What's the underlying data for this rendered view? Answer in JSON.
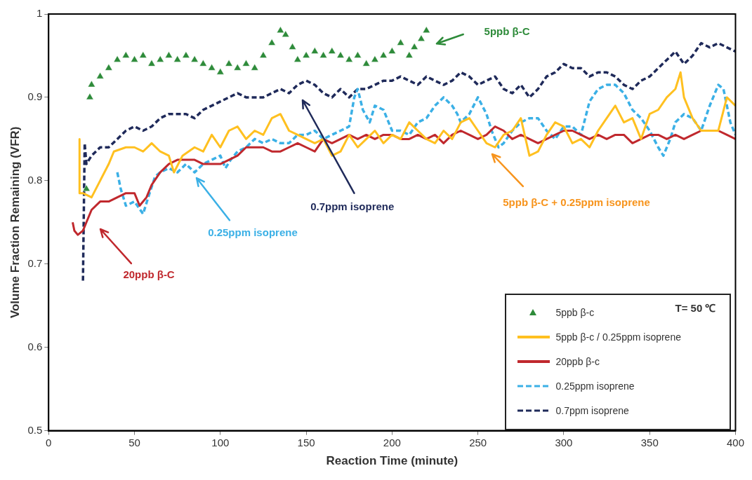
{
  "chart_data": {
    "type": "line",
    "xlabel": "Reaction Time (minute)",
    "ylabel": "Volume Fraction Remaining (VFR)",
    "xlim": [
      0,
      400
    ],
    "xticks": [
      0,
      50,
      100,
      150,
      200,
      250,
      300,
      350,
      400
    ],
    "ylim": [
      0.5,
      1
    ],
    "yticks": [
      0.5,
      0.6,
      0.7,
      0.8,
      0.9,
      1
    ],
    "grid": false,
    "legend": "bottom right",
    "marker": "none",
    "series": [
      {
        "name": "5ppb β-c",
        "type": "scatter",
        "marker": "triangle",
        "color": "#2e8b3a",
        "x": [
          22,
          24,
          25,
          30,
          35,
          40,
          45,
          50,
          55,
          60,
          65,
          70,
          75,
          80,
          85,
          90,
          95,
          100,
          105,
          110,
          115,
          120,
          125,
          130,
          135,
          138,
          142,
          145,
          150,
          155,
          160,
          165,
          170,
          175,
          180,
          185,
          190,
          195,
          200,
          205,
          210,
          213,
          217,
          220
        ],
        "values": [
          0.79,
          0.9,
          0.915,
          0.925,
          0.935,
          0.945,
          0.95,
          0.945,
          0.95,
          0.94,
          0.945,
          0.95,
          0.945,
          0.95,
          0.945,
          0.94,
          0.935,
          0.93,
          0.94,
          0.935,
          0.94,
          0.935,
          0.95,
          0.965,
          0.98,
          0.975,
          0.96,
          0.945,
          0.95,
          0.955,
          0.95,
          0.955,
          0.95,
          0.945,
          0.95,
          0.94,
          0.945,
          0.95,
          0.955,
          0.965,
          0.95,
          0.96,
          0.97,
          0.98
        ]
      },
      {
        "name": "5ppb β-c / 0.25ppm isoprene",
        "color": "#ffc020",
        "line_style": "solid",
        "x": [
          18,
          18,
          20,
          25,
          30,
          35,
          38,
          45,
          50,
          55,
          60,
          65,
          70,
          73,
          78,
          85,
          90,
          95,
          100,
          105,
          110,
          115,
          120,
          125,
          130,
          135,
          140,
          145,
          150,
          155,
          160,
          165,
          170,
          175,
          180,
          185,
          190,
          195,
          200,
          205,
          210,
          215,
          220,
          225,
          230,
          235,
          240,
          245,
          250,
          255,
          260,
          265,
          270,
          275,
          280,
          285,
          290,
          295,
          300,
          305,
          310,
          315,
          320,
          325,
          330,
          335,
          340,
          345,
          350,
          355,
          360,
          365,
          368,
          370,
          375,
          380,
          385,
          390,
          395,
          400
        ],
        "values": [
          0.85,
          0.785,
          0.785,
          0.78,
          0.8,
          0.82,
          0.835,
          0.84,
          0.84,
          0.835,
          0.845,
          0.835,
          0.83,
          0.81,
          0.83,
          0.84,
          0.835,
          0.855,
          0.84,
          0.86,
          0.865,
          0.85,
          0.86,
          0.855,
          0.875,
          0.88,
          0.86,
          0.855,
          0.85,
          0.845,
          0.85,
          0.83,
          0.835,
          0.855,
          0.84,
          0.85,
          0.86,
          0.845,
          0.855,
          0.85,
          0.87,
          0.86,
          0.85,
          0.845,
          0.86,
          0.85,
          0.87,
          0.875,
          0.86,
          0.845,
          0.84,
          0.855,
          0.86,
          0.875,
          0.83,
          0.835,
          0.855,
          0.87,
          0.865,
          0.845,
          0.85,
          0.84,
          0.86,
          0.875,
          0.89,
          0.87,
          0.875,
          0.85,
          0.88,
          0.885,
          0.9,
          0.91,
          0.93,
          0.9,
          0.875,
          0.86,
          0.86,
          0.86,
          0.9,
          0.89
        ]
      },
      {
        "name": "20ppb β-c",
        "color": "#c0282d",
        "line_style": "solid",
        "x": [
          14,
          15,
          17,
          20,
          22,
          25,
          30,
          35,
          40,
          45,
          50,
          53,
          57,
          60,
          65,
          70,
          75,
          80,
          85,
          90,
          95,
          100,
          105,
          110,
          115,
          120,
          125,
          130,
          135,
          140,
          145,
          150,
          155,
          160,
          165,
          170,
          175,
          180,
          185,
          190,
          195,
          200,
          205,
          210,
          215,
          220,
          225,
          230,
          235,
          240,
          245,
          250,
          255,
          260,
          265,
          270,
          275,
          280,
          285,
          290,
          295,
          300,
          305,
          310,
          315,
          320,
          325,
          330,
          335,
          340,
          345,
          350,
          355,
          360,
          365,
          370,
          375,
          380,
          385,
          390,
          395,
          400
        ],
        "values": [
          0.75,
          0.74,
          0.735,
          0.74,
          0.75,
          0.765,
          0.775,
          0.775,
          0.78,
          0.785,
          0.785,
          0.77,
          0.78,
          0.795,
          0.81,
          0.82,
          0.825,
          0.825,
          0.825,
          0.82,
          0.82,
          0.82,
          0.825,
          0.83,
          0.84,
          0.84,
          0.84,
          0.835,
          0.835,
          0.84,
          0.845,
          0.84,
          0.835,
          0.85,
          0.845,
          0.85,
          0.855,
          0.85,
          0.855,
          0.85,
          0.855,
          0.855,
          0.85,
          0.85,
          0.855,
          0.85,
          0.855,
          0.845,
          0.855,
          0.86,
          0.855,
          0.85,
          0.855,
          0.865,
          0.86,
          0.85,
          0.855,
          0.85,
          0.845,
          0.85,
          0.855,
          0.86,
          0.86,
          0.855,
          0.85,
          0.855,
          0.85,
          0.855,
          0.855,
          0.845,
          0.85,
          0.855,
          0.855,
          0.85,
          0.855,
          0.85,
          0.855,
          0.86,
          0.86,
          0.86,
          0.855,
          0.85
        ]
      },
      {
        "name": "0.25ppm isoprene",
        "color": "#3bb0e6",
        "line_style": "dashed",
        "x": [
          40,
          42,
          45,
          50,
          55,
          58,
          62,
          65,
          70,
          75,
          80,
          85,
          90,
          95,
          100,
          103,
          106,
          110,
          115,
          120,
          125,
          130,
          135,
          140,
          145,
          150,
          155,
          160,
          165,
          170,
          175,
          178,
          180,
          183,
          187,
          190,
          195,
          200,
          205,
          210,
          215,
          220,
          225,
          230,
          235,
          238,
          240,
          245,
          250,
          255,
          258,
          262,
          265,
          270,
          275,
          280,
          285,
          290,
          295,
          300,
          305,
          310,
          315,
          320,
          325,
          330,
          335,
          340,
          345,
          350,
          355,
          358,
          362,
          365,
          370,
          375,
          380,
          385,
          390,
          393,
          397,
          400
        ],
        "values": [
          0.81,
          0.79,
          0.77,
          0.775,
          0.76,
          0.78,
          0.805,
          0.81,
          0.815,
          0.81,
          0.82,
          0.81,
          0.82,
          0.825,
          0.83,
          0.815,
          0.825,
          0.835,
          0.84,
          0.85,
          0.845,
          0.85,
          0.845,
          0.845,
          0.855,
          0.855,
          0.86,
          0.85,
          0.855,
          0.86,
          0.865,
          0.9,
          0.91,
          0.885,
          0.87,
          0.89,
          0.885,
          0.86,
          0.86,
          0.855,
          0.87,
          0.875,
          0.89,
          0.9,
          0.89,
          0.88,
          0.87,
          0.88,
          0.9,
          0.88,
          0.86,
          0.84,
          0.845,
          0.86,
          0.87,
          0.875,
          0.875,
          0.86,
          0.85,
          0.865,
          0.865,
          0.855,
          0.895,
          0.91,
          0.915,
          0.915,
          0.905,
          0.885,
          0.875,
          0.86,
          0.84,
          0.83,
          0.85,
          0.87,
          0.88,
          0.875,
          0.86,
          0.89,
          0.915,
          0.91,
          0.87,
          0.855
        ]
      },
      {
        "name": "0.7ppm isoprene",
        "color": "#1f2a5a",
        "line_style": "dashed",
        "x": [
          20,
          21,
          22,
          25,
          30,
          35,
          40,
          45,
          50,
          55,
          60,
          65,
          70,
          75,
          80,
          85,
          90,
          95,
          100,
          105,
          110,
          115,
          120,
          125,
          130,
          135,
          140,
          145,
          150,
          155,
          160,
          165,
          170,
          175,
          180,
          185,
          190,
          195,
          200,
          205,
          210,
          215,
          220,
          225,
          230,
          235,
          240,
          245,
          250,
          255,
          260,
          265,
          270,
          275,
          280,
          285,
          290,
          295,
          300,
          305,
          310,
          315,
          320,
          325,
          330,
          335,
          340,
          345,
          350,
          355,
          360,
          365,
          370,
          375,
          380,
          385,
          390,
          395,
          400
        ],
        "values": [
          0.68,
          0.845,
          0.82,
          0.83,
          0.84,
          0.84,
          0.85,
          0.86,
          0.865,
          0.86,
          0.865,
          0.875,
          0.88,
          0.88,
          0.88,
          0.875,
          0.885,
          0.89,
          0.895,
          0.9,
          0.905,
          0.9,
          0.9,
          0.9,
          0.905,
          0.91,
          0.905,
          0.915,
          0.92,
          0.915,
          0.905,
          0.9,
          0.91,
          0.9,
          0.91,
          0.91,
          0.915,
          0.92,
          0.92,
          0.925,
          0.92,
          0.915,
          0.925,
          0.92,
          0.915,
          0.92,
          0.93,
          0.925,
          0.915,
          0.92,
          0.925,
          0.91,
          0.905,
          0.915,
          0.9,
          0.91,
          0.925,
          0.93,
          0.94,
          0.935,
          0.935,
          0.925,
          0.93,
          0.93,
          0.925,
          0.915,
          0.91,
          0.92,
          0.925,
          0.935,
          0.945,
          0.955,
          0.94,
          0.95,
          0.965,
          0.96,
          0.965,
          0.96,
          0.955
        ]
      }
    ],
    "annotations": [
      "5ppb β-C",
      "0.7ppm isoprene",
      "0.25ppm isoprene",
      "20ppb β-C",
      "5ppb β-C + 0.25ppm isoprene",
      "T= 50 ℃"
    ]
  }
}
